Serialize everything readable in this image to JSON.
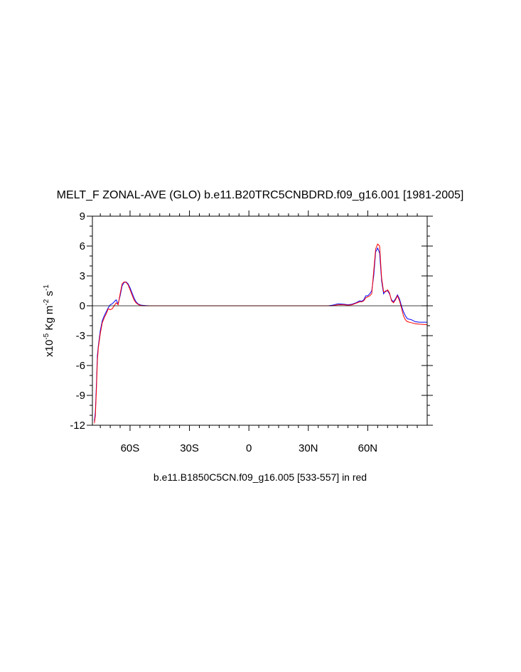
{
  "chart_data": {
    "type": "line",
    "title": "MELT_F ZONAL-AVE (GLO) b.e11.B20TRC5CNBDRD.f09_g16.001 [1981-2005]",
    "xlabel": "b.e11.B1850C5CN.f09_g16.005 [533-557] in red",
    "ylabel": {
      "prefix": "x10",
      "exp1": "-5",
      "mid": " Kg m",
      "exp2": "-2",
      "mid2": " s",
      "exp3": "-1"
    },
    "xlim": [
      -79,
      90
    ],
    "ylim": [
      -12,
      9
    ],
    "x_ticks": [
      {
        "value": -60,
        "label": "60S"
      },
      {
        "value": -30,
        "label": "30S"
      },
      {
        "value": 0,
        "label": "0"
      },
      {
        "value": 30,
        "label": "30N"
      },
      {
        "value": 60,
        "label": "60N"
      }
    ],
    "y_ticks": [
      {
        "value": 9,
        "label": "9"
      },
      {
        "value": 6,
        "label": "6"
      },
      {
        "value": 3,
        "label": "3"
      },
      {
        "value": 0,
        "label": "0"
      },
      {
        "value": -3,
        "label": "-3"
      },
      {
        "value": -6,
        "label": "-6"
      },
      {
        "value": -9,
        "label": "-9"
      },
      {
        "value": -12,
        "label": "-12"
      }
    ],
    "zero_line": true,
    "series": [
      {
        "color": "#0000ff",
        "x": [
          -78,
          -77.5,
          -77,
          -76.5,
          -76,
          -75,
          -74,
          -73,
          -72,
          -71,
          -70,
          -69,
          -68,
          -67,
          -66,
          -65,
          -64,
          -63,
          -62,
          -61,
          -60,
          -59,
          -58,
          -57,
          -56,
          -55,
          -54,
          -52,
          -50,
          -45,
          -30,
          0,
          30,
          40,
          42,
          45,
          48,
          50,
          52,
          54,
          56,
          57,
          58,
          59,
          60,
          61,
          62,
          63,
          64,
          65,
          66,
          67,
          68,
          69,
          70,
          71,
          72,
          73,
          74,
          75,
          76,
          77,
          78,
          79,
          80,
          82,
          84,
          86,
          90
        ],
        "y": [
          -11.6,
          -10.6,
          -8.0,
          -5.0,
          -4.0,
          -2.5,
          -1.5,
          -1.0,
          -0.6,
          -0.2,
          0.1,
          0.2,
          0.4,
          0.6,
          0.2,
          1.0,
          2.0,
          2.35,
          2.4,
          2.2,
          1.8,
          1.3,
          0.8,
          0.4,
          0.2,
          0.1,
          0.05,
          0.02,
          0.0,
          0.0,
          0.0,
          0.0,
          0.0,
          0.0,
          0.05,
          0.2,
          0.15,
          0.1,
          0.15,
          0.3,
          0.5,
          0.45,
          0.6,
          1.0,
          1.0,
          1.2,
          1.5,
          3.0,
          5.4,
          5.8,
          5.3,
          2.5,
          1.2,
          1.5,
          1.5,
          1.2,
          0.6,
          0.4,
          0.7,
          1.1,
          0.7,
          0.0,
          -0.6,
          -1.0,
          -1.3,
          -1.4,
          -1.6,
          -1.65,
          -1.65
        ]
      },
      {
        "color": "#ff0000",
        "x": [
          -78,
          -77.5,
          -77,
          -76.5,
          -76,
          -75,
          -74,
          -73,
          -72,
          -71,
          -70,
          -69,
          -68,
          -67,
          -66,
          -65,
          -64,
          -63,
          -62,
          -61,
          -60,
          -59,
          -58,
          -57,
          -56,
          -55,
          -54,
          -52,
          -50,
          -45,
          -30,
          0,
          30,
          40,
          42,
          45,
          48,
          50,
          52,
          54,
          56,
          57,
          58,
          59,
          60,
          61,
          62,
          63,
          64,
          65,
          66,
          67,
          68,
          69,
          70,
          71,
          72,
          73,
          74,
          75,
          76,
          77,
          78,
          79,
          80,
          82,
          84,
          86,
          90
        ],
        "y": [
          -11.8,
          -11.0,
          -8.5,
          -5.5,
          -4.2,
          -2.8,
          -1.7,
          -1.2,
          -0.8,
          -0.3,
          -0.4,
          -0.3,
          0.0,
          0.3,
          0.1,
          1.2,
          2.2,
          2.4,
          2.35,
          2.1,
          1.6,
          1.1,
          0.6,
          0.3,
          0.15,
          0.05,
          0.02,
          0.0,
          0.0,
          0.0,
          0.0,
          0.0,
          0.0,
          0.0,
          0.0,
          0.1,
          0.1,
          0.05,
          0.1,
          0.25,
          0.4,
          0.4,
          0.5,
          0.8,
          0.9,
          1.0,
          1.2,
          3.5,
          5.7,
          6.2,
          6.0,
          2.8,
          1.4,
          1.4,
          1.6,
          1.3,
          0.5,
          0.3,
          0.6,
          1.0,
          0.5,
          -0.2,
          -1.0,
          -1.4,
          -1.6,
          -1.7,
          -1.8,
          -1.85,
          -1.9
        ]
      }
    ]
  }
}
